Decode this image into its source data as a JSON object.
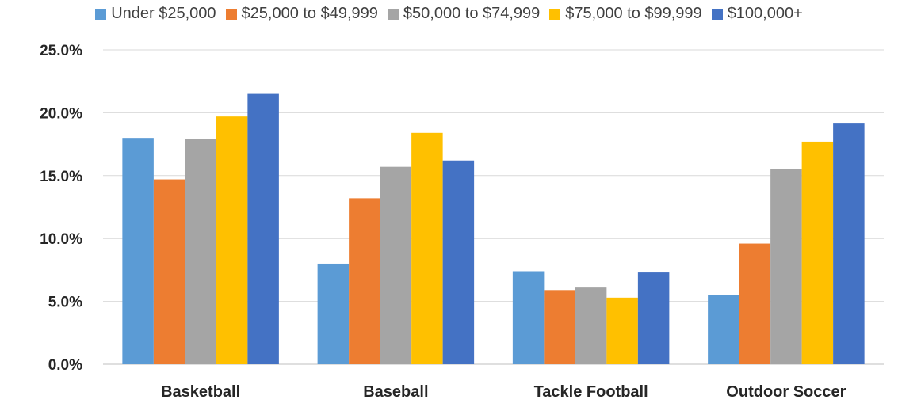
{
  "chart_data": {
    "type": "bar",
    "categories": [
      "Basketball",
      "Baseball",
      "Tackle Football",
      "Outdoor Soccer"
    ],
    "series": [
      {
        "name": "Under $25,000",
        "color": "#5B9BD5",
        "values": [
          18.0,
          8.0,
          7.4,
          5.5
        ]
      },
      {
        "name": "$25,000 to $49,999",
        "color": "#ED7D31",
        "values": [
          14.7,
          13.2,
          5.9,
          9.6
        ]
      },
      {
        "name": "$50,000 to $74,999",
        "color": "#A5A5A5",
        "values": [
          17.9,
          15.7,
          6.1,
          15.5
        ]
      },
      {
        "name": "$75,000 to $99,999",
        "color": "#FFC000",
        "values": [
          19.7,
          18.4,
          5.3,
          17.7
        ]
      },
      {
        "name": "$100,000+",
        "color": "#4472C4",
        "values": [
          21.5,
          16.2,
          7.3,
          19.2
        ]
      }
    ],
    "ylim": [
      0,
      25
    ],
    "yticks": [
      "0.0%",
      "5.0%",
      "10.0%",
      "15.0%",
      "20.0%",
      "25.0%"
    ],
    "grid": true,
    "legend": "top"
  }
}
